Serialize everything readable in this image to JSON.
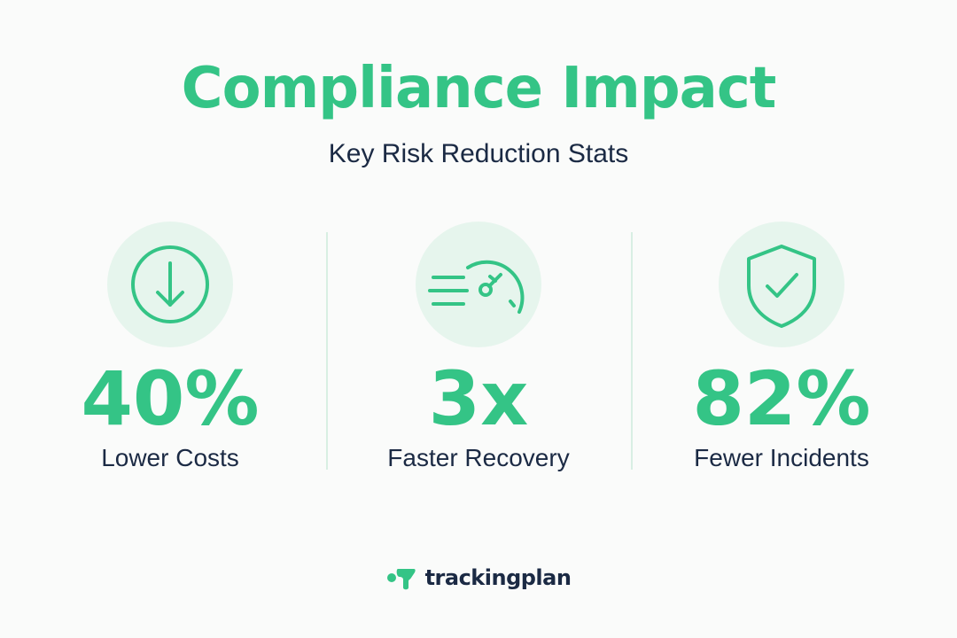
{
  "header": {
    "title": "Compliance Impact",
    "subtitle": "Key Risk Reduction Stats"
  },
  "stats": [
    {
      "value": "40%",
      "label": "Lower Costs",
      "icon": "arrow-down-circle-icon"
    },
    {
      "value": "3x",
      "label": "Faster Recovery",
      "icon": "speedometer-icon"
    },
    {
      "value": "82%",
      "label": "Fewer Incidents",
      "icon": "shield-check-icon"
    }
  ],
  "brand": {
    "name": "trackingplan",
    "icon": "trackingplan-logo-icon"
  },
  "colors": {
    "accent": "#34c486",
    "text": "#1b2a44",
    "icon_bg": "#e6f5ed",
    "background": "#fafbfa"
  }
}
